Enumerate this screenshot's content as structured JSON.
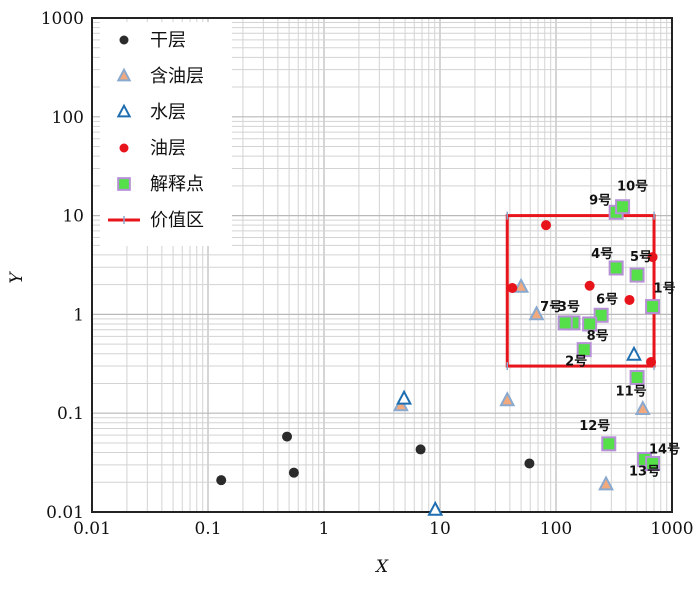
{
  "chart_data": {
    "type": "scatter",
    "xlabel": "X",
    "ylabel": "Y",
    "x_scale": "log",
    "y_scale": "log",
    "xlim": [
      0.01,
      1000
    ],
    "ylim": [
      0.01,
      1000
    ],
    "x_ticks": [
      {
        "v": 0.01,
        "label": "0.01"
      },
      {
        "v": 0.1,
        "label": "0.1"
      },
      {
        "v": 1,
        "label": "1"
      },
      {
        "v": 10,
        "label": "10"
      },
      {
        "v": 100,
        "label": "100"
      },
      {
        "v": 1000,
        "label": "1000"
      }
    ],
    "y_ticks": [
      {
        "v": 0.01,
        "label": "0.01"
      },
      {
        "v": 0.1,
        "label": "0.1"
      },
      {
        "v": 1,
        "label": "1"
      },
      {
        "v": 10,
        "label": "10"
      },
      {
        "v": 100,
        "label": "100"
      },
      {
        "v": 1000,
        "label": "1000"
      }
    ],
    "grid": true,
    "legend_position": "top-left",
    "series": [
      {
        "name": "干层",
        "marker": "circle",
        "color": "#2b2b2b",
        "points": [
          {
            "x": 0.13,
            "y": 0.021
          },
          {
            "x": 0.48,
            "y": 0.058
          },
          {
            "x": 0.55,
            "y": 0.025
          },
          {
            "x": 6.8,
            "y": 0.043
          },
          {
            "x": 59,
            "y": 0.031
          }
        ]
      },
      {
        "name": "含油层",
        "marker": "triangle",
        "color": "#f2a97e",
        "stroke": "#8aa9cf",
        "points": [
          {
            "x": 4.6,
            "y": 0.12
          },
          {
            "x": 38,
            "y": 0.135
          },
          {
            "x": 50,
            "y": 1.9
          },
          {
            "x": 68,
            "y": 1.0
          },
          {
            "x": 270,
            "y": 0.019
          },
          {
            "x": 560,
            "y": 0.11
          }
        ]
      },
      {
        "name": "水层",
        "marker": "triangle",
        "color": "#ffffff",
        "stroke": "#1f6fb0",
        "points": [
          {
            "x": 4.9,
            "y": 0.14
          },
          {
            "x": 9.1,
            "y": 0.0105
          },
          {
            "x": 470,
            "y": 0.39
          }
        ]
      },
      {
        "name": "油层",
        "marker": "circle",
        "color": "#e8141b",
        "points": [
          {
            "x": 42,
            "y": 1.85
          },
          {
            "x": 82,
            "y": 8.0
          },
          {
            "x": 195,
            "y": 1.95
          },
          {
            "x": 430,
            "y": 1.4
          },
          {
            "x": 680,
            "y": 3.8
          },
          {
            "x": 660,
            "y": 0.33
          }
        ]
      },
      {
        "name": "解释点",
        "marker": "square",
        "color": "#55e04a",
        "stroke": "#b68fd6",
        "points": [
          {
            "x": 680,
            "y": 1.2,
            "label": "1号"
          },
          {
            "x": 175,
            "y": 0.44,
            "label": "2号"
          },
          {
            "x": 140,
            "y": 0.82,
            "label": "3号"
          },
          {
            "x": 330,
            "y": 2.95,
            "label": "4号"
          },
          {
            "x": 500,
            "y": 2.5,
            "label": "5号"
          },
          {
            "x": 245,
            "y": 0.98,
            "label": "6号"
          },
          {
            "x": 120,
            "y": 0.82,
            "label": "7号"
          },
          {
            "x": 195,
            "y": 0.8,
            "label": "8号"
          },
          {
            "x": 330,
            "y": 10.8,
            "label": "9号"
          },
          {
            "x": 375,
            "y": 12.3,
            "label": "10号"
          },
          {
            "x": 500,
            "y": 0.23,
            "label": "11号"
          },
          {
            "x": 285,
            "y": 0.049,
            "label": "12号"
          },
          {
            "x": 580,
            "y": 0.034,
            "label": "13号"
          },
          {
            "x": 680,
            "y": 0.031,
            "label": "14号"
          }
        ]
      }
    ],
    "region": {
      "name": "价值区",
      "color": "#e8141b",
      "x": [
        38,
        700
      ],
      "y": [
        0.3,
        10
      ]
    }
  }
}
